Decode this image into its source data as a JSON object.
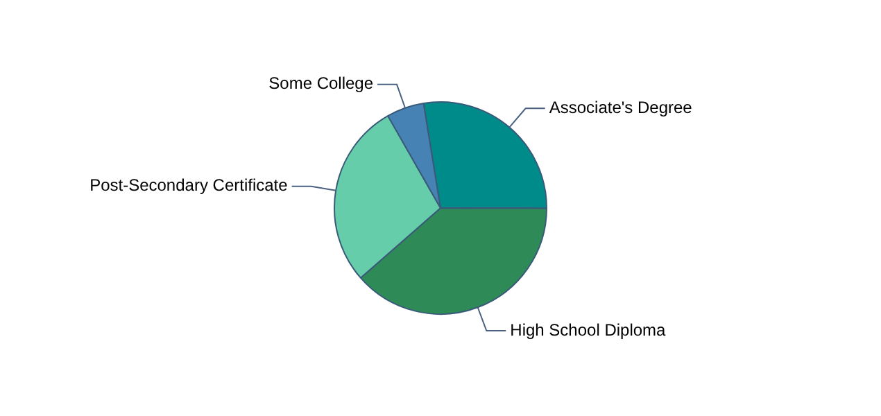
{
  "chart_data": {
    "type": "pie",
    "categories": [
      "Associate's Degree",
      "High School Diploma",
      "Post-Secondary Certificate",
      "Some College"
    ],
    "values": [
      27.6,
      38.5,
      28.2,
      5.7
    ],
    "colors": [
      "#008b8b",
      "#2e8b57",
      "#66cdaa",
      "#4682b4"
    ],
    "legend": false
  }
}
